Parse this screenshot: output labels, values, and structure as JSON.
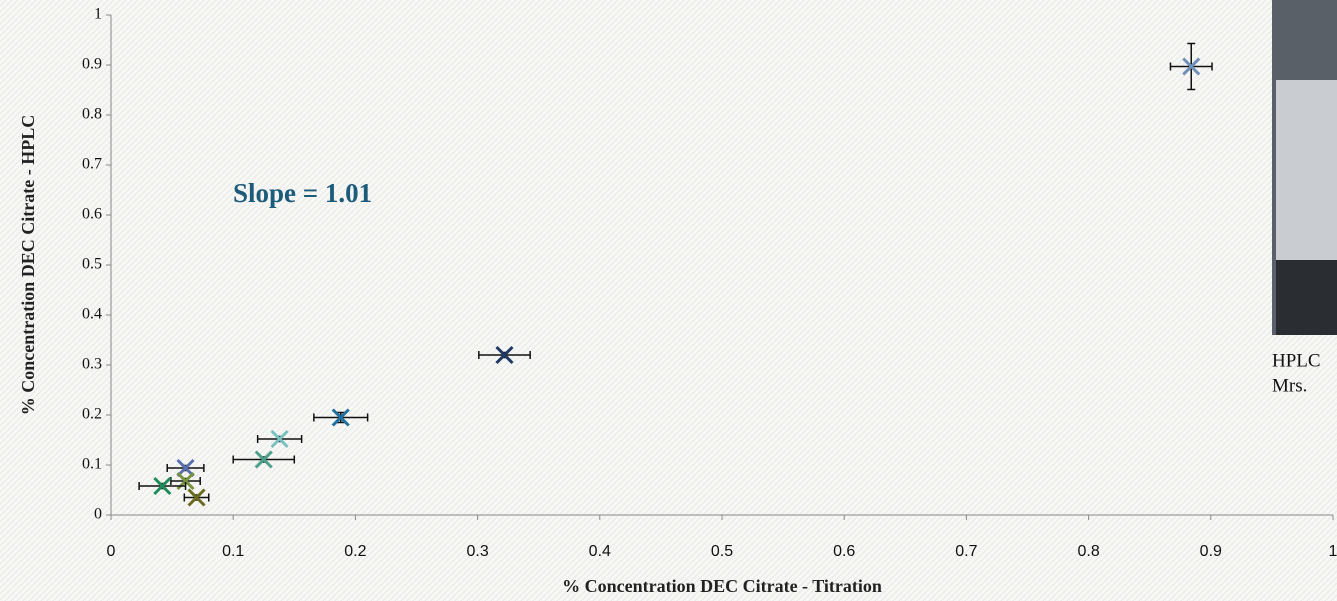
{
  "chart_data": {
    "type": "scatter",
    "xlabel": "% Concentration DEC Citrate - Titration",
    "ylabel": "% Concentration DEC Citrate - HPLC",
    "annotation": "Slope = 1.01",
    "xlim": [
      0,
      1
    ],
    "ylim": [
      0,
      1
    ],
    "xticks": [
      0,
      0.1,
      0.2,
      0.3,
      0.4,
      0.5,
      0.6,
      0.7,
      0.8,
      0.9,
      1
    ],
    "yticks": [
      0,
      0.1,
      0.2,
      0.3,
      0.4,
      0.5,
      0.6,
      0.7,
      0.8,
      0.9,
      1
    ],
    "series": [
      {
        "color": "#6f8fb8",
        "x": [
          0.884
        ],
        "y": [
          0.897
        ],
        "xerr": [
          0.017
        ],
        "yerr": [
          0.046
        ]
      },
      {
        "color": "#1f3864",
        "x": [
          0.322
        ],
        "y": [
          0.32
        ],
        "xerr": [
          0.021
        ],
        "yerr": [
          0.005
        ]
      },
      {
        "color": "#1f6fa0",
        "x": [
          0.188
        ],
        "y": [
          0.195
        ],
        "xerr": [
          0.022
        ],
        "yerr": [
          0.01
        ]
      },
      {
        "color": "#79c0c0",
        "x": [
          0.138
        ],
        "y": [
          0.152
        ],
        "xerr": [
          0.018
        ],
        "yerr": [
          0.005
        ]
      },
      {
        "color": "#4aa08a",
        "x": [
          0.125
        ],
        "y": [
          0.111
        ],
        "xerr": [
          0.025
        ],
        "yerr": [
          0.005
        ]
      },
      {
        "color": "#5a6fb0",
        "x": [
          0.061
        ],
        "y": [
          0.094
        ],
        "xerr": [
          0.015
        ],
        "yerr": [
          0.005
        ]
      },
      {
        "color": "#77933c",
        "x": [
          0.061
        ],
        "y": [
          0.068
        ],
        "xerr": [
          0.012
        ],
        "yerr": [
          0.005
        ]
      },
      {
        "color": "#6b6b1f",
        "x": [
          0.07
        ],
        "y": [
          0.035
        ],
        "xerr": [
          0.01
        ],
        "yerr": [
          0.005
        ]
      },
      {
        "color": "#1e8c5a",
        "x": [
          0.042
        ],
        "y": [
          0.058
        ],
        "xerr": [
          0.019
        ],
        "yerr": [
          0.005
        ]
      }
    ]
  },
  "photo": {
    "caption_lines": [
      "HPLC",
      "Mrs."
    ]
  }
}
